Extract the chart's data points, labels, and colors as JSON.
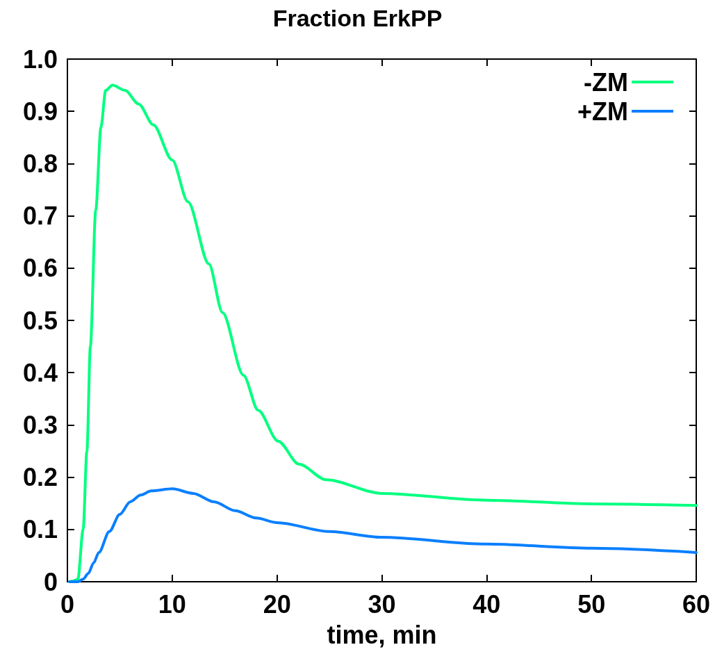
{
  "chart_data": {
    "type": "line",
    "title": "Fraction ErkPP",
    "xlabel": "time, min",
    "xlim": [
      0,
      60
    ],
    "xticks": [
      0,
      10,
      20,
      30,
      40,
      50,
      60
    ],
    "ylim": [
      0,
      1
    ],
    "yticks": [
      0,
      0.1,
      0.2,
      0.3,
      0.4,
      0.5,
      0.6,
      0.7,
      0.8,
      0.9,
      {
        "value": 1,
        "label": "1.0"
      }
    ],
    "grid": false,
    "legend": "top right",
    "marker": "none",
    "series": [
      {
        "name": "-ZM",
        "color": "#00ff7f",
        "x": [
          0.2,
          0.5,
          1,
          1.5,
          1.86,
          2.19,
          2.7,
          3.2,
          3.65,
          4.3,
          5.5,
          6.8,
          8.2,
          10,
          11.5,
          13.5,
          14.8,
          16.8,
          18.2,
          20.1,
          22.1,
          24.7,
          30,
          40,
          50,
          60
        ],
        "values": [
          0,
          0.001,
          0.005,
          0.1,
          0.25,
          0.45,
          0.71,
          0.87,
          0.94,
          0.95,
          0.94,
          0.914,
          0.874,
          0.807,
          0.727,
          0.608,
          0.515,
          0.395,
          0.328,
          0.269,
          0.225,
          0.195,
          0.169,
          0.156,
          0.149,
          0.146
        ]
      },
      {
        "name": "+ZM",
        "color": "#0a7fff",
        "x": [
          0.2,
          0.5,
          1,
          1.5,
          2,
          2.5,
          3,
          4,
          5,
          6,
          7,
          8,
          10,
          12,
          14,
          16,
          18,
          20,
          25,
          30,
          40,
          50,
          60
        ],
        "values": [
          0,
          0,
          0,
          0.005,
          0.016,
          0.036,
          0.056,
          0.096,
          0.129,
          0.153,
          0.166,
          0.174,
          0.178,
          0.169,
          0.153,
          0.136,
          0.122,
          0.113,
          0.096,
          0.085,
          0.072,
          0.064,
          0.056
        ]
      }
    ]
  }
}
